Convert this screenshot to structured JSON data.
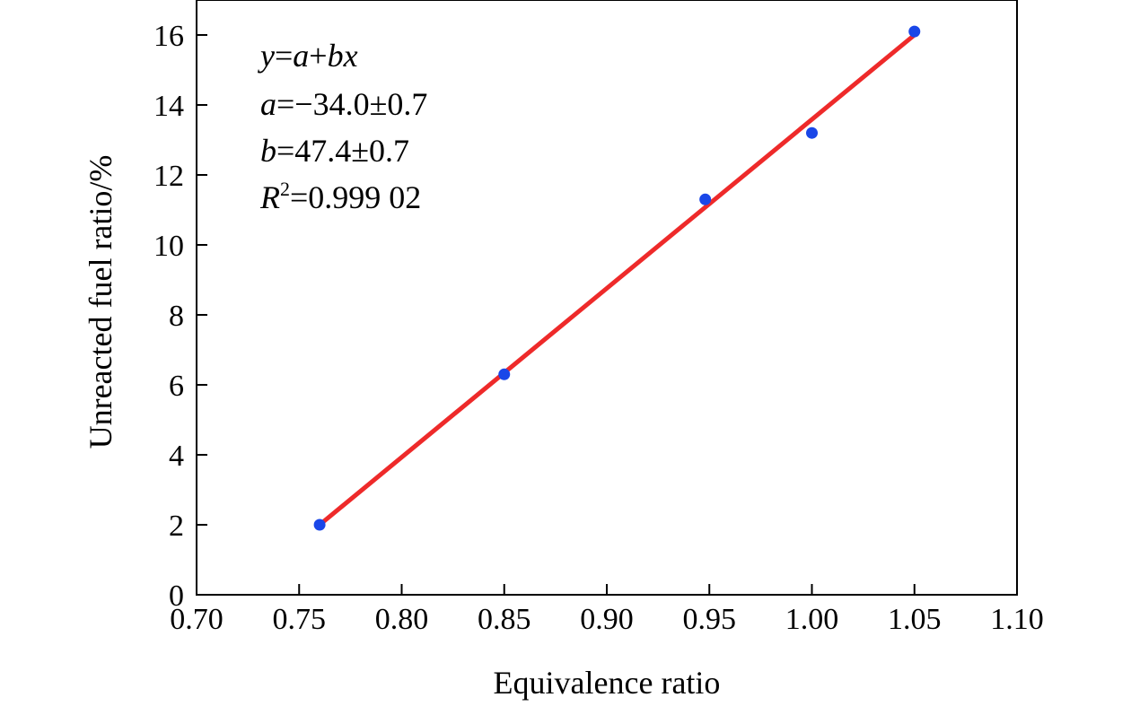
{
  "colors": {
    "points": "#1a47e8",
    "fit_line": "#ee2a2a",
    "axes": "#000000"
  },
  "chart_data": {
    "type": "scatter",
    "xlabel": "Equivalence ratio",
    "ylabel": "Unreacted fuel ratio/%",
    "xlim": [
      0.7,
      1.1
    ],
    "ylim": [
      0,
      17
    ],
    "x_ticks": [
      {
        "value": 0.7,
        "label": "0.70"
      },
      {
        "value": 0.75,
        "label": "0.75"
      },
      {
        "value": 0.8,
        "label": "0.80"
      },
      {
        "value": 0.85,
        "label": "0.85"
      },
      {
        "value": 0.9,
        "label": "0.90"
      },
      {
        "value": 0.95,
        "label": "0.95"
      },
      {
        "value": 1.0,
        "label": "1.00"
      },
      {
        "value": 1.05,
        "label": "1.05"
      },
      {
        "value": 1.1,
        "label": "1.10"
      }
    ],
    "y_ticks": [
      {
        "value": 0,
        "label": "0"
      },
      {
        "value": 2,
        "label": "2"
      },
      {
        "value": 4,
        "label": "4"
      },
      {
        "value": 6,
        "label": "6"
      },
      {
        "value": 8,
        "label": "8"
      },
      {
        "value": 10,
        "label": "10"
      },
      {
        "value": 12,
        "label": "12"
      },
      {
        "value": 14,
        "label": "14"
      },
      {
        "value": 16,
        "label": "16"
      }
    ],
    "grid": false,
    "series": [
      {
        "type": "scatter",
        "points": [
          {
            "x": 0.76,
            "y": 2.0
          },
          {
            "x": 0.85,
            "y": 6.3
          },
          {
            "x": 0.948,
            "y": 11.3
          },
          {
            "x": 1.0,
            "y": 13.2
          },
          {
            "x": 1.05,
            "y": 16.1
          }
        ]
      },
      {
        "type": "line",
        "points": [
          {
            "x": 0.76,
            "y": 2.0
          },
          {
            "x": 1.05,
            "y": 16.0
          }
        ]
      }
    ],
    "annotation": {
      "equation": "y=a+bx",
      "a": "a=−34.0±0.7",
      "b": "b=47.4±0.7",
      "r2": "R2=0.999 02",
      "eq_parts": {
        "y": "y",
        "eq": "=",
        "a": "a",
        "plus": "+",
        "bx": "bx"
      },
      "a_parts": {
        "sym": "a",
        "rest": "=−34.0±0.7"
      },
      "b_parts": {
        "sym": "b",
        "rest": "=47.4±0.7"
      },
      "r2_parts": {
        "sym": "R",
        "sup": "2",
        "rest": "=0.999 02"
      }
    }
  }
}
